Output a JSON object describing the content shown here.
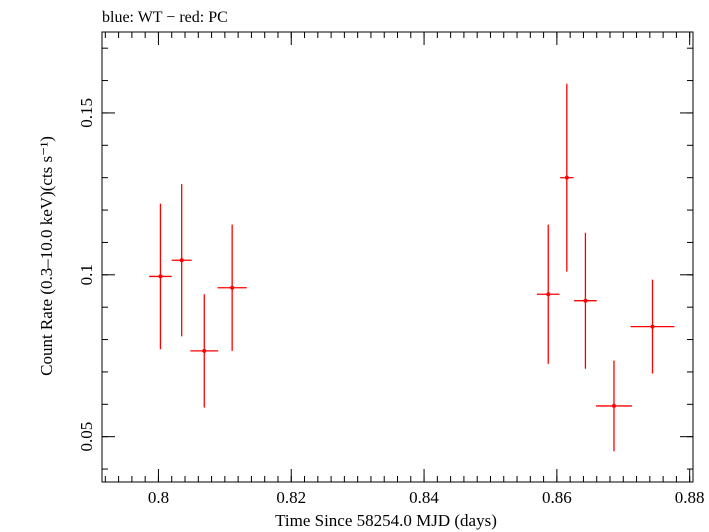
{
  "chart_data": {
    "type": "scatter",
    "title": "blue: WT − red: PC",
    "xlabel": "Time Since 58254.0 MJD (days)",
    "ylabel": "Count Rate (0.3–10.0 keV)(cts s⁻¹)",
    "xlim": [
      0.7915,
      0.8805
    ],
    "ylim": [
      0.036,
      0.175
    ],
    "x_ticks": [
      {
        "value": 0.8,
        "label": "0.8"
      },
      {
        "value": 0.82,
        "label": "0.82"
      },
      {
        "value": 0.84,
        "label": "0.84"
      },
      {
        "value": 0.86,
        "label": "0.86"
      },
      {
        "value": 0.88,
        "label": "0.88"
      }
    ],
    "y_ticks": [
      {
        "value": 0.05,
        "label": "0.05"
      },
      {
        "value": 0.1,
        "label": "0.1"
      },
      {
        "value": 0.15,
        "label": "0.15"
      }
    ],
    "x_minor_step": 0.002,
    "y_minor_step": 0.01,
    "grid": false,
    "series": [
      {
        "color": "#ff0000",
        "points": [
          {
            "x": 0.8003,
            "xerr": 0.0017,
            "y": 0.0995,
            "yerr": 0.0225
          },
          {
            "x": 0.8035,
            "xerr": 0.0015,
            "y": 0.1045,
            "yerr": 0.0235
          },
          {
            "x": 0.8069,
            "xerr": 0.0021,
            "y": 0.0765,
            "yerr": 0.0175
          },
          {
            "x": 0.8111,
            "xerr": 0.0022,
            "y": 0.096,
            "yerr": 0.0195
          },
          {
            "x": 0.8587,
            "xerr": 0.0017,
            "y": 0.094,
            "yerr": 0.0215
          },
          {
            "x": 0.8615,
            "xerr": 0.001,
            "y": 0.13,
            "yerr": 0.029
          },
          {
            "x": 0.8643,
            "xerr": 0.0017,
            "y": 0.092,
            "yerr": 0.021
          },
          {
            "x": 0.8686,
            "xerr": 0.0027,
            "y": 0.0595,
            "yerr": 0.014
          },
          {
            "x": 0.8744,
            "xerr": 0.0033,
            "y": 0.084,
            "yerr": 0.0145
          }
        ]
      }
    ]
  }
}
